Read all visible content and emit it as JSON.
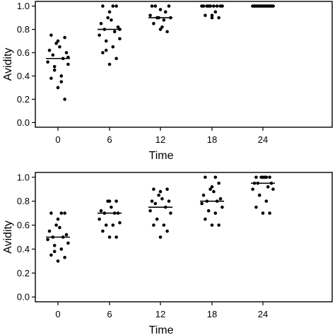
{
  "chart_data": [
    {
      "type": "scatter",
      "xlabel": "Time",
      "ylabel": "Avidity",
      "categories": [
        "0",
        "6",
        "12",
        "18",
        "24"
      ],
      "ylim": [
        0,
        1
      ],
      "yticks": [
        "0.0",
        "0.2",
        "0.4",
        "0.6",
        "0.8",
        "1.0"
      ],
      "grid": false,
      "points": [
        [
          0.3,
          0.2,
          0.38,
          0.35,
          0.45,
          0.5,
          0.52,
          0.55,
          0.58,
          0.6,
          0.62,
          0.65,
          0.68,
          0.7,
          0.73,
          0.75,
          0.4,
          0.48,
          0.56
        ],
        [
          0.5,
          0.55,
          0.6,
          0.65,
          0.7,
          0.72,
          0.75,
          0.78,
          0.8,
          0.82,
          0.85,
          0.88,
          0.9,
          0.95,
          1.0,
          1.0,
          1.0,
          0.62,
          0.8
        ],
        [
          0.8,
          0.78,
          0.85,
          0.88,
          0.9,
          0.9,
          0.92,
          0.95,
          1.0,
          1.0,
          1.0,
          0.82,
          0.9,
          0.97
        ],
        [
          0.9,
          0.9,
          0.92,
          0.95,
          1.0,
          1.0,
          1.0,
          1.0,
          1.0,
          1.0,
          1.0,
          1.0,
          1.0,
          0.92
        ],
        [
          1.0,
          1.0,
          1.0,
          1.0,
          1.0,
          1.0,
          1.0,
          1.0,
          1.0,
          1.0,
          1.0,
          1.0,
          1.0
        ]
      ],
      "medians": [
        0.55,
        0.8,
        0.9,
        1.0,
        1.0
      ]
    },
    {
      "type": "scatter",
      "xlabel": "Time",
      "ylabel": "Avidity",
      "categories": [
        "0",
        "6",
        "12",
        "18",
        "24"
      ],
      "ylim": [
        0,
        1
      ],
      "yticks": [
        "0.0",
        "0.2",
        "0.4",
        "0.6",
        "0.8",
        "1.0"
      ],
      "grid": false,
      "points": [
        [
          0.3,
          0.33,
          0.35,
          0.4,
          0.43,
          0.45,
          0.48,
          0.5,
          0.5,
          0.52,
          0.55,
          0.58,
          0.6,
          0.65,
          0.7,
          0.7,
          0.7,
          0.38
        ],
        [
          0.5,
          0.5,
          0.55,
          0.6,
          0.6,
          0.62,
          0.65,
          0.7,
          0.7,
          0.7,
          0.72,
          0.75,
          0.8,
          0.8,
          0.8
        ],
        [
          0.5,
          0.55,
          0.6,
          0.6,
          0.65,
          0.7,
          0.72,
          0.75,
          0.78,
          0.8,
          0.8,
          0.82,
          0.85,
          0.88,
          0.9,
          0.9
        ],
        [
          0.6,
          0.6,
          0.65,
          0.7,
          0.72,
          0.75,
          0.78,
          0.8,
          0.8,
          0.82,
          0.85,
          0.88,
          0.9,
          0.92,
          0.95,
          1.0,
          1.0
        ],
        [
          0.7,
          0.7,
          0.75,
          0.8,
          0.85,
          0.9,
          0.9,
          0.92,
          0.95,
          0.95,
          0.95,
          1.0,
          1.0,
          1.0,
          1.0,
          1.0,
          1.0,
          0.85
        ]
      ],
      "medians": [
        0.5,
        0.7,
        0.75,
        0.8,
        0.95
      ]
    }
  ]
}
